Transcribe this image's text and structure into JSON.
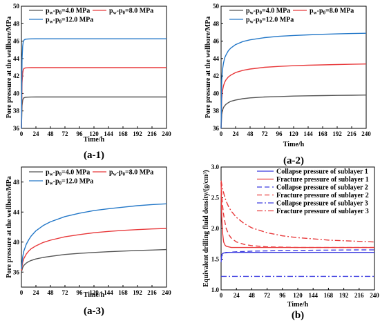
{
  "chart_data": [
    {
      "type": "line",
      "panel_label": "(a-1)",
      "xlabel": "Time/h",
      "ylabel": "Pore pressure at the wellbore/MPa",
      "xlim": [
        0,
        240
      ],
      "ylim": [
        36,
        50
      ],
      "xticks": [
        0,
        24,
        48,
        72,
        96,
        120,
        144,
        168,
        192,
        216,
        240
      ],
      "yticks": [
        36,
        38,
        40,
        42,
        44,
        46,
        48,
        50
      ],
      "grid": false,
      "legend_position": "top",
      "x": [
        0,
        1,
        2,
        3,
        4,
        6,
        8,
        12,
        16,
        24,
        36,
        48,
        72,
        96,
        120,
        144,
        168,
        192,
        216,
        240
      ],
      "series": [
        {
          "name": "pw-p0=4.0 MPa",
          "name_main": "p",
          "name_sub1": "w",
          "name_mid": "-p",
          "name_sub2": "0",
          "name_rest": "=4.0 MPa",
          "color": "#555555",
          "dash": "",
          "values": [
            36.0,
            38.6,
            39.2,
            39.4,
            39.5,
            39.55,
            39.57,
            39.58,
            39.59,
            39.6,
            39.6,
            39.6,
            39.6,
            39.6,
            39.6,
            39.6,
            39.6,
            39.6,
            39.6,
            39.6
          ]
        },
        {
          "name": "pw-p0=8.0 MPa",
          "name_main": "p",
          "name_sub1": "w",
          "name_mid": "-p",
          "name_sub2": "0",
          "name_rest": "=8.0 MPa",
          "color": "#e8393b",
          "dash": "",
          "values": [
            36.0,
            41.2,
            42.3,
            42.7,
            42.85,
            42.92,
            42.94,
            42.95,
            42.96,
            42.96,
            42.96,
            42.96,
            42.96,
            42.96,
            42.96,
            42.96,
            42.96,
            42.96,
            42.96,
            42.96
          ]
        },
        {
          "name": "pw-p0=12.0 MPa",
          "name_main": "p",
          "name_sub1": "w",
          "name_mid": "-p",
          "name_sub2": "0",
          "name_rest": "=12.0 MPa",
          "color": "#2478c8",
          "dash": "",
          "values": [
            36.0,
            43.9,
            45.4,
            45.9,
            46.1,
            46.2,
            46.23,
            46.25,
            46.26,
            46.27,
            46.27,
            46.27,
            46.27,
            46.27,
            46.27,
            46.27,
            46.27,
            46.27,
            46.27,
            46.27
          ]
        }
      ]
    },
    {
      "type": "line",
      "panel_label": "(a-2)",
      "xlabel": "Time/h",
      "ylabel": "Pore pressure at the wellbore/MPa",
      "xlim": [
        0,
        240
      ],
      "ylim": [
        36,
        50
      ],
      "xticks": [
        0,
        24,
        48,
        72,
        96,
        120,
        144,
        168,
        192,
        216,
        240
      ],
      "yticks": [
        36,
        38,
        40,
        42,
        44,
        46,
        48,
        50
      ],
      "grid": false,
      "legend_position": "top",
      "x": [
        0,
        1,
        2,
        4,
        6,
        8,
        12,
        16,
        24,
        36,
        48,
        72,
        96,
        120,
        144,
        168,
        192,
        216,
        240
      ],
      "series": [
        {
          "name": "pw-p0=4.0 MPa",
          "name_main": "p",
          "name_sub1": "w",
          "name_mid": "-p",
          "name_sub2": "0",
          "name_rest": "=4.0 MPa",
          "color": "#555555",
          "dash": "",
          "values": [
            36.0,
            37.6,
            38.0,
            38.4,
            38.6,
            38.75,
            38.95,
            39.1,
            39.25,
            39.4,
            39.5,
            39.6,
            39.65,
            39.7,
            39.73,
            39.76,
            39.78,
            39.8,
            39.82
          ]
        },
        {
          "name": "pw-p0=8.0 MPa",
          "name_main": "p",
          "name_sub1": "w",
          "name_mid": "-p",
          "name_sub2": "0",
          "name_rest": "=8.0 MPa",
          "color": "#e8393b",
          "dash": "",
          "values": [
            36.0,
            39.4,
            40.2,
            40.9,
            41.3,
            41.55,
            41.9,
            42.1,
            42.4,
            42.65,
            42.8,
            43.0,
            43.1,
            43.18,
            43.24,
            43.28,
            43.32,
            43.35,
            43.38
          ]
        },
        {
          "name": "pw-p0=12.0 MPa",
          "name_main": "p",
          "name_sub1": "w",
          "name_mid": "-p",
          "name_sub2": "0",
          "name_rest": "=12.0 MPa",
          "color": "#2478c8",
          "dash": "",
          "values": [
            36.0,
            41.5,
            42.6,
            43.5,
            44.1,
            44.4,
            44.9,
            45.2,
            45.6,
            45.95,
            46.15,
            46.4,
            46.55,
            46.65,
            46.72,
            46.78,
            46.83,
            46.87,
            46.9
          ]
        }
      ]
    },
    {
      "type": "line",
      "panel_label": "(a-3)",
      "xlabel": "Time/h",
      "ylabel": "Pore pressure at the wellbore/MPa",
      "xlim": [
        0,
        240
      ],
      "ylim": [
        34,
        50
      ],
      "xticks": [
        0,
        24,
        48,
        72,
        96,
        120,
        144,
        168,
        192,
        216,
        240
      ],
      "yticks": [
        36,
        40,
        44,
        48
      ],
      "grid": false,
      "legend_position": "top",
      "x": [
        0,
        2,
        4,
        8,
        12,
        16,
        24,
        36,
        48,
        72,
        96,
        120,
        144,
        168,
        192,
        216,
        240
      ],
      "series": [
        {
          "name": "pw-p0=4.0 MPa",
          "name_main": "p",
          "name_sub1": "w",
          "name_mid": "-p",
          "name_sub2": "0",
          "name_rest": "=4.0 MPa",
          "color": "#555555",
          "dash": "",
          "values": [
            36.0,
            36.6,
            36.9,
            37.2,
            37.4,
            37.55,
            37.75,
            37.95,
            38.1,
            38.35,
            38.5,
            38.62,
            38.72,
            38.8,
            38.88,
            38.94,
            39.0
          ]
        },
        {
          "name": "pw-p0=8.0 MPa",
          "name_main": "p",
          "name_sub1": "w",
          "name_mid": "-p",
          "name_sub2": "0",
          "name_rest": "=8.0 MPa",
          "color": "#e8393b",
          "dash": "",
          "values": [
            36.2,
            37.3,
            37.8,
            38.4,
            38.8,
            39.1,
            39.5,
            39.95,
            40.25,
            40.7,
            41.0,
            41.25,
            41.42,
            41.56,
            41.66,
            41.75,
            41.82
          ]
        },
        {
          "name": "pw-p0=12.0 MPa",
          "name_main": "p",
          "name_sub1": "w",
          "name_mid": "-p",
          "name_sub2": "0",
          "name_rest": "=12.0 MPa",
          "color": "#2478c8",
          "dash": "",
          "values": [
            36.4,
            38.0,
            38.8,
            39.7,
            40.3,
            40.8,
            41.5,
            42.2,
            42.7,
            43.4,
            43.85,
            44.2,
            44.45,
            44.65,
            44.85,
            45.0,
            45.1
          ]
        }
      ]
    },
    {
      "type": "line",
      "panel_label": "(b)",
      "xlabel": "Time/h",
      "ylabel": "Equivalent drilling fluid density/(g/cm³)",
      "xlim": [
        0,
        240
      ],
      "ylim": [
        1.0,
        3.0
      ],
      "xticks": [
        0,
        24,
        48,
        72,
        96,
        120,
        144,
        168,
        192,
        216,
        240
      ],
      "yticks": [
        1.0,
        1.5,
        2.0,
        2.5,
        3.0
      ],
      "grid": false,
      "legend_position": "top-right",
      "x": [
        0,
        1,
        2,
        4,
        6,
        8,
        12,
        16,
        24,
        36,
        48,
        72,
        96,
        120,
        144,
        168,
        192,
        216,
        240
      ],
      "series": [
        {
          "name": "Collapse pressure of sublayer 1",
          "color": "#3a3adf",
          "dash": "",
          "values": [
            1.45,
            1.57,
            1.59,
            1.6,
            1.605,
            1.61,
            1.61,
            1.61,
            1.61,
            1.61,
            1.61,
            1.61,
            1.61,
            1.61,
            1.61,
            1.61,
            1.61,
            1.61,
            1.61
          ]
        },
        {
          "name": "Fracture pressure of sublayer 1",
          "color": "#e8393b",
          "dash": "",
          "values": [
            2.75,
            2.2,
            1.95,
            1.78,
            1.73,
            1.71,
            1.7,
            1.69,
            1.69,
            1.69,
            1.69,
            1.69,
            1.69,
            1.69,
            1.69,
            1.69,
            1.69,
            1.69,
            1.69
          ]
        },
        {
          "name": "Collapse pressure of sublayer 2",
          "color": "#3a3adf",
          "dash": "7,4",
          "values": [
            1.5,
            1.55,
            1.57,
            1.59,
            1.6,
            1.605,
            1.61,
            1.615,
            1.62,
            1.625,
            1.63,
            1.635,
            1.64,
            1.642,
            1.645,
            1.647,
            1.649,
            1.65,
            1.65
          ]
        },
        {
          "name": "Fracture pressure of sublayer 2",
          "color": "#e8393b",
          "dash": "7,4",
          "values": [
            2.75,
            2.55,
            2.4,
            2.22,
            2.1,
            2.0,
            1.9,
            1.84,
            1.78,
            1.74,
            1.72,
            1.7,
            1.695,
            1.69,
            1.69,
            1.69,
            1.69,
            1.69,
            1.69
          ]
        },
        {
          "name": "Collapse pressure of sublayer 3",
          "color": "#3a3adf",
          "dash": "8,3,2,3",
          "values": [
            1.22,
            1.22,
            1.22,
            1.22,
            1.22,
            1.22,
            1.22,
            1.22,
            1.22,
            1.22,
            1.22,
            1.22,
            1.22,
            1.22,
            1.22,
            1.22,
            1.22,
            1.22,
            1.22
          ]
        },
        {
          "name": "Fracture pressure of sublayer 3",
          "color": "#e8393b",
          "dash": "8,3,2,3",
          "values": [
            2.78,
            2.72,
            2.66,
            2.58,
            2.5,
            2.44,
            2.35,
            2.28,
            2.18,
            2.08,
            2.01,
            1.93,
            1.88,
            1.85,
            1.83,
            1.81,
            1.8,
            1.79,
            1.78
          ]
        }
      ]
    }
  ]
}
